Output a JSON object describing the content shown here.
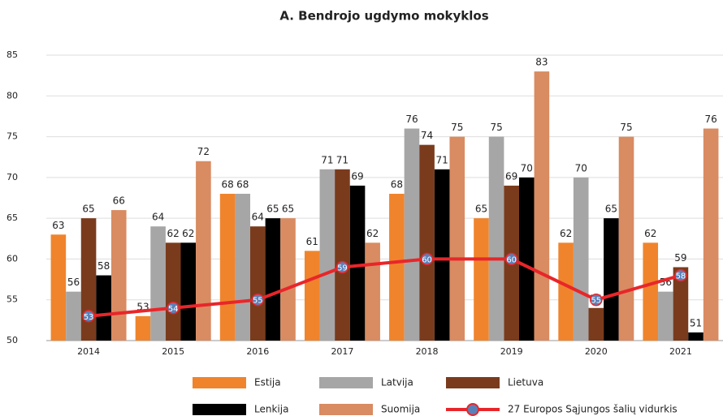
{
  "chart_data": {
    "type": "bar",
    "title": "A. Bendrojo ugdymo mokyklos",
    "categories": [
      "2014",
      "2015",
      "2016",
      "2017",
      "2018",
      "2019",
      "2020",
      "2021"
    ],
    "series": [
      {
        "name": "Estija",
        "color": "#f0842c",
        "values": [
          63,
          53,
          68,
          61,
          68,
          65,
          62,
          62
        ]
      },
      {
        "name": "Latvija",
        "color": "#a6a6a6",
        "values": [
          56,
          64,
          68,
          71,
          76,
          75,
          70,
          56
        ]
      },
      {
        "name": "Lietuva",
        "color": "#7a3b1c",
        "values": [
          65,
          62,
          64,
          71,
          74,
          69,
          54,
          59
        ]
      },
      {
        "name": "Lenkija",
        "color": "#000000",
        "values": [
          58,
          62,
          65,
          69,
          71,
          70,
          65,
          51
        ]
      },
      {
        "name": "Suomija",
        "color": "#d98b61",
        "values": [
          66,
          72,
          65,
          62,
          75,
          83,
          75,
          76
        ]
      },
      {
        "name": "27 Europos Sąjungos šalių vidurkis",
        "type": "line",
        "color": "#e8262a",
        "marker_color": "#5b80b8",
        "values": [
          53,
          54,
          55,
          59,
          60,
          60,
          55,
          58
        ]
      }
    ],
    "ylim": [
      50,
      85
    ],
    "yticks": [
      50,
      55,
      60,
      65,
      70,
      75,
      80,
      85
    ],
    "grid": true,
    "legend": "bottom"
  }
}
